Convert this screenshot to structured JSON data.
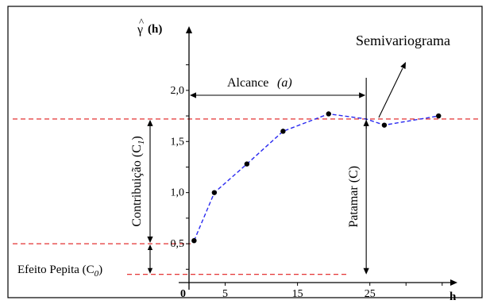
{
  "chart_data": {
    "type": "scatter",
    "title": "Semivariograma",
    "xlabel": "h",
    "ylabel": "γ̂ (h)",
    "ylabel_hat": "^",
    "ylabel_gamma": "γ",
    "ylabel_suffix": "(h)",
    "x_origin_label": "0",
    "x_ticks": [
      {
        "value": 5,
        "label": "5"
      },
      {
        "value": 15,
        "label": "15"
      },
      {
        "value": 25,
        "label": "25"
      }
    ],
    "y_ticks": [
      {
        "value": 0.5,
        "label": "0,5"
      },
      {
        "value": 1.0,
        "label": "1,0"
      },
      {
        "value": 1.5,
        "label": "1,5"
      },
      {
        "value": 2.0,
        "label": "2,0"
      }
    ],
    "xlim": [
      0,
      37
    ],
    "ylim": [
      0.12,
      2.62
    ],
    "points": [
      {
        "x": 0.7,
        "y": 0.53
      },
      {
        "x": 3.5,
        "y": 1.0
      },
      {
        "x": 8.0,
        "y": 1.28
      },
      {
        "x": 13.0,
        "y": 1.6
      },
      {
        "x": 19.3,
        "y": 1.77
      },
      {
        "x": 27.0,
        "y": 1.66
      },
      {
        "x": 34.5,
        "y": 1.75
      }
    ],
    "model_curve": [
      {
        "x": 0.7,
        "y": 0.53
      },
      {
        "x": 3.5,
        "y": 1.0
      },
      {
        "x": 8.0,
        "y": 1.28
      },
      {
        "x": 13.0,
        "y": 1.6
      },
      {
        "x": 19.3,
        "y": 1.77
      },
      {
        "x": 24.5,
        "y": 1.72
      },
      {
        "x": 27.0,
        "y": 1.66
      },
      {
        "x": 34.5,
        "y": 1.75
      }
    ],
    "nugget": 0.5,
    "sill": 1.72,
    "range": 24.5,
    "baseline": 0.2,
    "annotations": {
      "alcance": "Alcance",
      "alcance_symbol": "(a)",
      "contribuicao": "Contribuição (C",
      "contribuicao_sub": "1",
      "contribuicao_close": ")",
      "patamar": "Patamar (C)",
      "efeito_pepita": "Efeito Pepita (C",
      "efeito_pepita_sub": "0",
      "efeito_pepita_close": ")",
      "semivariograma": "Semivariograma"
    },
    "colors": {
      "axis": "#000000",
      "points": "#000000",
      "model_line": "#2a2af0",
      "reference_lines": "#e01b1b",
      "frame": "#000000"
    },
    "grid": false,
    "legend": "none"
  }
}
